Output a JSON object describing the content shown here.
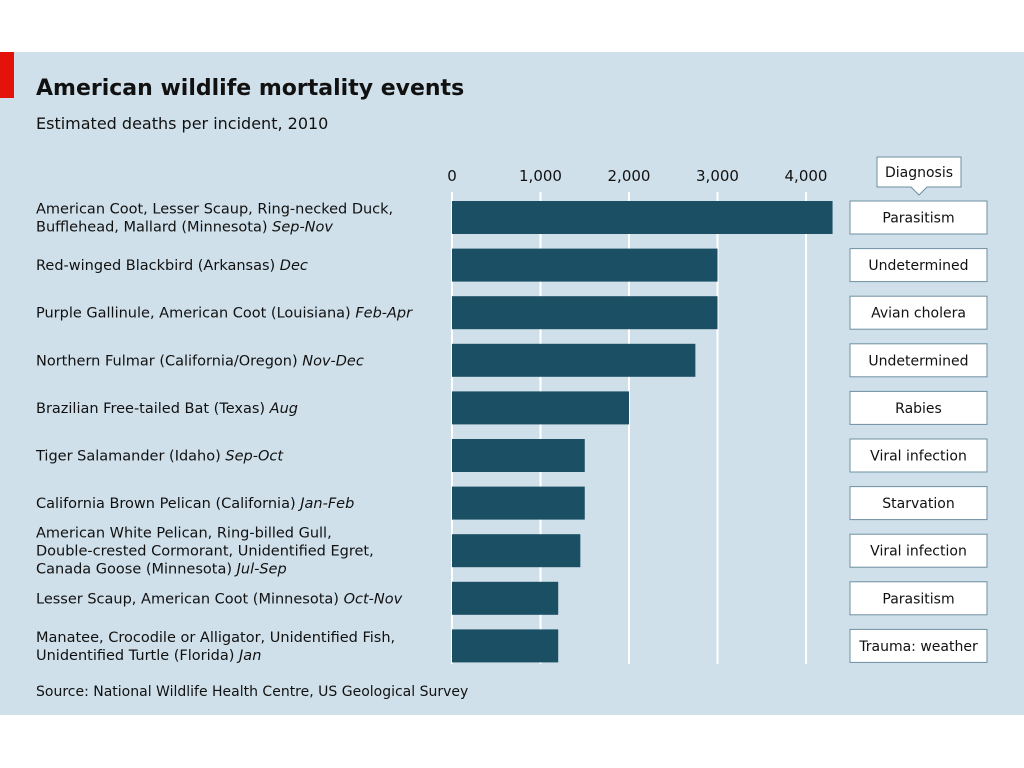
{
  "chart_data": {
    "type": "bar",
    "orientation": "horizontal",
    "title": "American wildlife mortality events",
    "subtitle": "Estimated deaths per incident, 2010",
    "source": "Source: National Wildlife Health Centre, US Geological Survey",
    "xlim": [
      0,
      4400
    ],
    "ticks": [
      0,
      1000,
      2000,
      3000,
      4000
    ],
    "tick_labels": [
      "0",
      "1,000",
      "2,000",
      "3,000",
      "4,000"
    ],
    "grid": true,
    "diagnosis_header": "Diagnosis",
    "bar_color": "#1b4f63",
    "categories": [
      {
        "lines": [
          "American Coot, Lesser Scaup, Ring-necked Duck,",
          "Bufflehead, Mallard (Minnesota)"
        ],
        "period": "Sep-Nov",
        "value": 4300,
        "diagnosis": "Parasitism"
      },
      {
        "lines": [
          "Red-winged Blackbird (Arkansas)"
        ],
        "period": "Dec",
        "value": 3000,
        "diagnosis": "Undetermined"
      },
      {
        "lines": [
          "Purple Gallinule, American Coot (Louisiana)"
        ],
        "period": "Feb-Apr",
        "value": 3000,
        "diagnosis": "Avian cholera"
      },
      {
        "lines": [
          "Northern Fulmar (California/Oregon)"
        ],
        "period": "Nov-Dec",
        "value": 2750,
        "diagnosis": "Undetermined"
      },
      {
        "lines": [
          "Brazilian Free-tailed Bat (Texas)"
        ],
        "period": "Aug",
        "value": 2000,
        "diagnosis": "Rabies"
      },
      {
        "lines": [
          "Tiger Salamander (Idaho)"
        ],
        "period": "Sep-Oct",
        "value": 1500,
        "diagnosis": "Viral infection"
      },
      {
        "lines": [
          "California Brown Pelican (California)"
        ],
        "period": "Jan-Feb",
        "value": 1500,
        "diagnosis": "Starvation"
      },
      {
        "lines": [
          "American White Pelican, Ring-billed Gull,",
          "Double-crested Cormorant, Unidentified Egret,",
          "Canada Goose (Minnesota)"
        ],
        "period": "Jul-Sep",
        "value": 1450,
        "diagnosis": "Viral infection"
      },
      {
        "lines": [
          "Lesser Scaup, American Coot (Minnesota)"
        ],
        "period": "Oct-Nov",
        "value": 1200,
        "diagnosis": "Parasitism"
      },
      {
        "lines": [
          "Manatee, Crocodile or Alligator, Unidentified Fish,",
          "Unidentified Turtle (Florida)"
        ],
        "period": "Jan",
        "value": 1200,
        "diagnosis": "Trauma: weather"
      }
    ]
  }
}
